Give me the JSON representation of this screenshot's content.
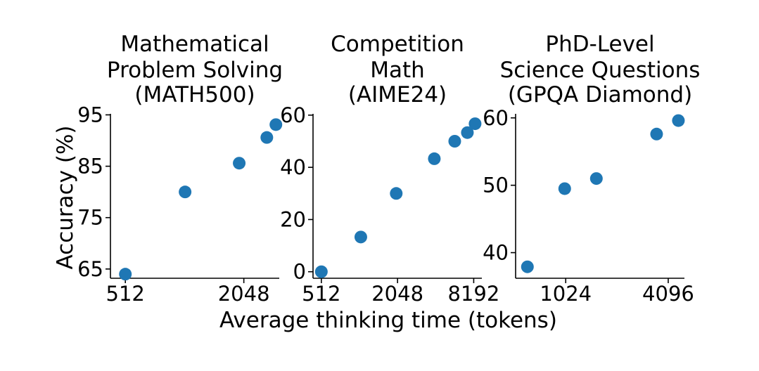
{
  "chart_data": {
    "type": "scatter",
    "xlabel": "Average thinking time (tokens)",
    "ylabel": "Accuracy (%)",
    "marker_color": "#1f77b4",
    "x_scale": "log2",
    "panels": [
      {
        "title_lines": [
          "Mathematical",
          "Problem Solving",
          "(MATH500)"
        ],
        "xticks": [
          512,
          2048
        ],
        "xtick_labels": [
          "512",
          "2048"
        ],
        "xlim": [
          430,
          3100
        ],
        "yticks": [
          65,
          75,
          85,
          95
        ],
        "ytick_labels": [
          "65",
          "75",
          "85",
          "95"
        ],
        "ylim": [
          63.2,
          95.2
        ],
        "points": [
          {
            "x": 512,
            "y": 64.0
          },
          {
            "x": 1030,
            "y": 80.0
          },
          {
            "x": 1940,
            "y": 85.6
          },
          {
            "x": 2680,
            "y": 90.6
          },
          {
            "x": 2980,
            "y": 93.1
          }
        ]
      },
      {
        "title_lines": [
          "Competition",
          "Math",
          "(AIME24)"
        ],
        "xticks": [
          512,
          2048,
          8192
        ],
        "xtick_labels": [
          "512",
          "2048",
          "8192"
        ],
        "xlim": [
          440,
          9500
        ],
        "yticks": [
          0,
          20,
          40,
          60
        ],
        "ytick_labels": [
          "0",
          "20",
          "40",
          "60"
        ],
        "ylim": [
          -2.5,
          60.5
        ],
        "points": [
          {
            "x": 512,
            "y": 0.0
          },
          {
            "x": 1050,
            "y": 13.3
          },
          {
            "x": 2000,
            "y": 30.0
          },
          {
            "x": 4000,
            "y": 43.3
          },
          {
            "x": 5800,
            "y": 50.0
          },
          {
            "x": 7300,
            "y": 53.3
          },
          {
            "x": 8400,
            "y": 56.7
          }
        ]
      },
      {
        "title_lines": [
          "PhD-Level",
          "Science Questions",
          "(GPQA Diamond)"
        ],
        "xticks": [
          1024,
          4096
        ],
        "xtick_labels": [
          "1024",
          "4096"
        ],
        "xlim": [
          520,
          5100
        ],
        "yticks": [
          40,
          50,
          60
        ],
        "ytick_labels": [
          "40",
          "50",
          "60"
        ],
        "ylim": [
          36.2,
          60.6
        ],
        "points": [
          {
            "x": 610,
            "y": 37.9
          },
          {
            "x": 1010,
            "y": 49.5
          },
          {
            "x": 1550,
            "y": 51.0
          },
          {
            "x": 3500,
            "y": 57.6
          },
          {
            "x": 4700,
            "y": 59.6
          }
        ]
      }
    ]
  }
}
